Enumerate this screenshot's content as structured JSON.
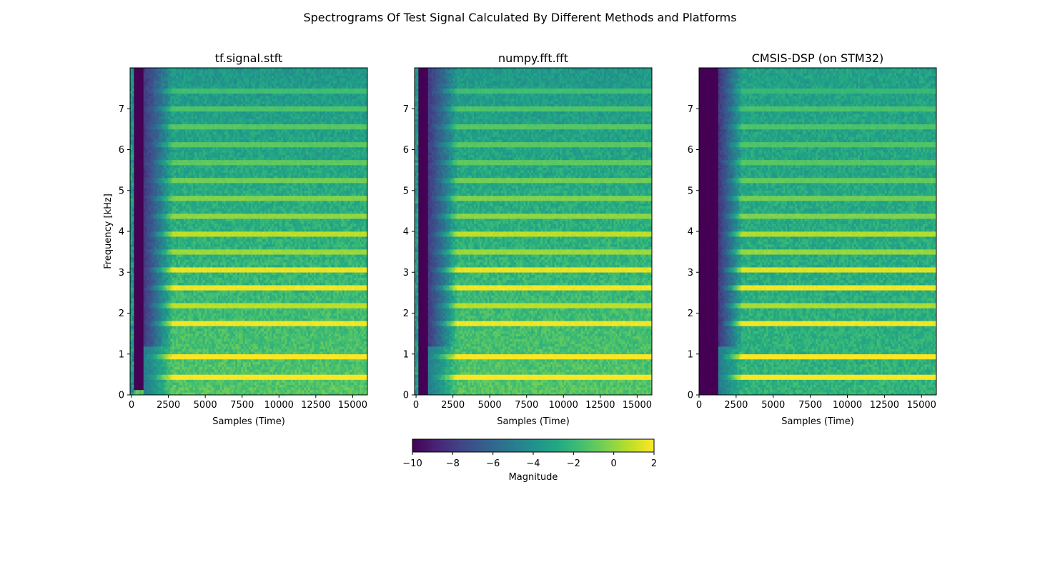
{
  "figure": {
    "suptitle": "Spectrograms Of Test Signal Calculated By Different Methods and Platforms"
  },
  "chart_data": [
    {
      "type": "heatmap",
      "title": "tf.signal.stft",
      "xlabel": "Samples (Time)",
      "ylabel": "Frequency [kHz]",
      "xlim": [
        -100,
        16000
      ],
      "ylim": [
        0,
        8
      ],
      "xticks": [
        0,
        2500,
        5000,
        7500,
        10000,
        12500,
        15000
      ],
      "xtick_labels": [
        "0",
        "2500",
        "5000",
        "7500",
        "10000",
        "12500",
        "15000"
      ],
      "yticks": [
        0,
        1,
        2,
        3,
        4,
        5,
        6,
        7
      ],
      "ytick_labels": [
        "0",
        "1",
        "2",
        "3",
        "4",
        "5",
        "6",
        "7"
      ],
      "colormap": "viridis",
      "vmin": -10,
      "vmax": 2,
      "silent_region_samples": [
        150,
        800
      ],
      "onset_end_samples": 2800,
      "lowest_bin_filled": true,
      "band_freqs_khz": [
        0.44,
        0.94,
        1.75,
        2.19,
        2.63,
        3.06,
        3.5,
        3.94,
        4.38,
        4.81,
        5.25,
        5.69,
        6.13,
        6.56,
        7.0,
        7.44
      ],
      "band_magnitudes": [
        2,
        2,
        1.8,
        0.8,
        1.8,
        1.6,
        0.2,
        0.8,
        0,
        -0.3,
        -0.6,
        -1,
        -1.1,
        -1.2,
        -1.4,
        -1.7
      ],
      "background_magnitude_low_khz": -1.2,
      "background_magnitude_high_khz": -3.6
    },
    {
      "type": "heatmap",
      "title": "numpy.fft.fft",
      "xlabel": "Samples (Time)",
      "ylabel": "",
      "xlim": [
        -100,
        16000
      ],
      "ylim": [
        0,
        8
      ],
      "xticks": [
        0,
        2500,
        5000,
        7500,
        10000,
        12500,
        15000
      ],
      "xtick_labels": [
        "0",
        "2500",
        "5000",
        "7500",
        "10000",
        "12500",
        "15000"
      ],
      "yticks": [
        0,
        1,
        2,
        3,
        4,
        5,
        6,
        7
      ],
      "ytick_labels": [
        "0",
        "1",
        "2",
        "3",
        "4",
        "5",
        "6",
        "7"
      ],
      "colormap": "viridis",
      "vmin": -10,
      "vmax": 2,
      "silent_region_samples": [
        150,
        800
      ],
      "onset_end_samples": 2800,
      "lowest_bin_filled": false,
      "band_freqs_khz": [
        0.44,
        0.94,
        1.75,
        2.19,
        2.63,
        3.06,
        3.5,
        3.94,
        4.38,
        4.81,
        5.25,
        5.69,
        6.13,
        6.56,
        7.0,
        7.44
      ],
      "band_magnitudes": [
        2,
        2,
        1.8,
        0.8,
        1.8,
        1.6,
        0.2,
        0.8,
        0,
        -0.3,
        -0.6,
        -1,
        -1.1,
        -1.2,
        -1.4,
        -1.7
      ],
      "background_magnitude_low_khz": -1.2,
      "background_magnitude_high_khz": -3.6
    },
    {
      "type": "heatmap",
      "title": "CMSIS-DSP (on STM32)",
      "xlabel": "Samples (Time)",
      "ylabel": "",
      "xlim": [
        0,
        16000
      ],
      "ylim": [
        0,
        8
      ],
      "xticks": [
        0,
        2500,
        5000,
        7500,
        10000,
        12500,
        15000
      ],
      "xtick_labels": [
        "0",
        "2500",
        "5000",
        "7500",
        "10000",
        "12500",
        "15000"
      ],
      "yticks": [
        0,
        1,
        2,
        3,
        4,
        5,
        6,
        7
      ],
      "ytick_labels": [
        "0",
        "1",
        "2",
        "3",
        "4",
        "5",
        "6",
        "7"
      ],
      "colormap": "viridis",
      "vmin": -10,
      "vmax": 2,
      "silent_region_samples": [
        0,
        1350
      ],
      "onset_end_samples": 2900,
      "lowest_bin_filled": false,
      "band_freqs_khz": [
        0.44,
        0.94,
        1.75,
        2.19,
        2.63,
        3.06,
        3.5,
        3.94,
        4.38,
        4.81,
        5.25,
        5.69,
        6.13,
        6.56,
        7.0,
        7.44
      ],
      "band_magnitudes": [
        2,
        2,
        1.8,
        0.5,
        1.8,
        1.4,
        0.1,
        0.6,
        -0.3,
        -0.6,
        -0.9,
        -1.2,
        -1.3,
        -1.4,
        -1.5,
        -2
      ],
      "background_magnitude_low_khz": -2.2,
      "background_magnitude_high_khz": -3.2
    }
  ],
  "colorbar": {
    "label": "Magnitude",
    "vmin": -10,
    "vmax": 2,
    "ticks": [
      -10,
      -8,
      -6,
      -4,
      -2,
      0,
      2
    ],
    "tick_labels": [
      "−10",
      "−8",
      "−6",
      "−4",
      "−2",
      "0",
      "2"
    ]
  }
}
